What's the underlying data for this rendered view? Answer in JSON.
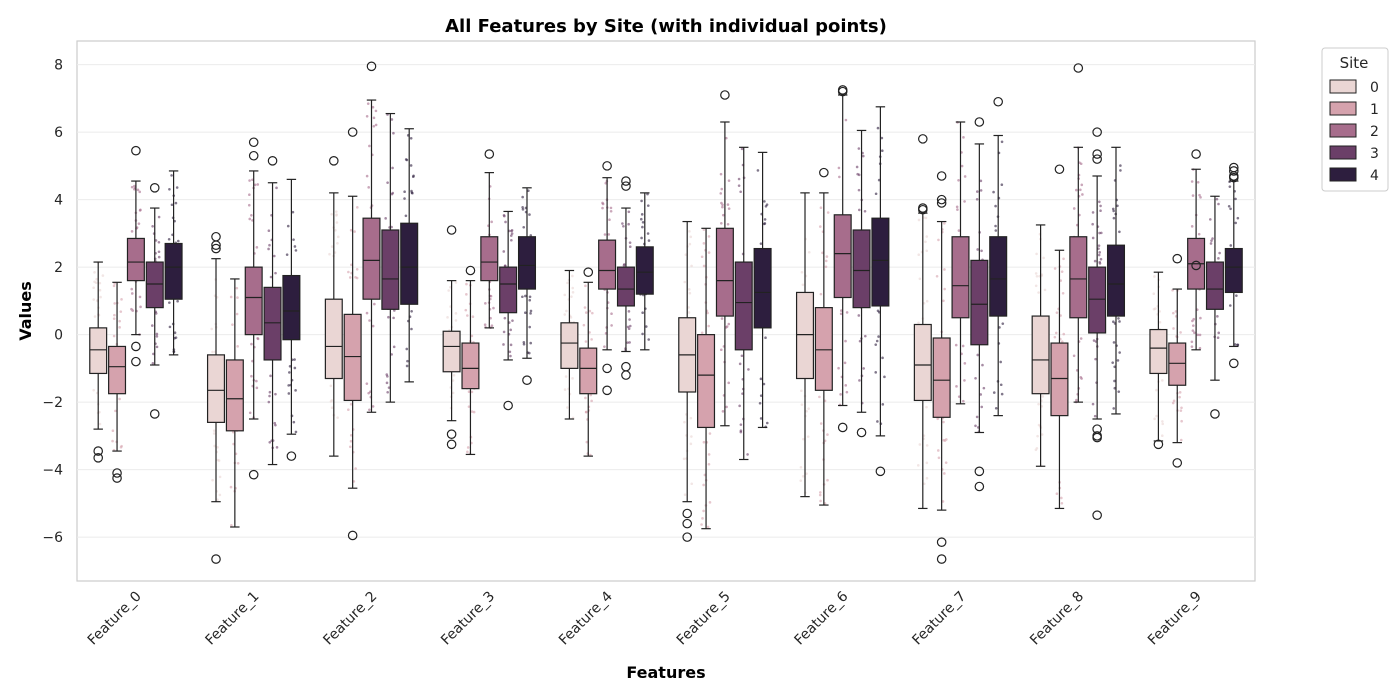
{
  "chart_data": {
    "type": "box",
    "title": "All Features by Site (with individual points)",
    "xlabel": "Features",
    "ylabel": "Values",
    "ylim": [
      -7.3,
      8.7
    ],
    "yticks": [
      -6,
      -4,
      -2,
      0,
      2,
      4,
      6,
      8
    ],
    "grid": "horizontal",
    "legend_position": "upper-right-outside",
    "categories": [
      "Feature_0",
      "Feature_1",
      "Feature_2",
      "Feature_3",
      "Feature_4",
      "Feature_5",
      "Feature_6",
      "Feature_7",
      "Feature_8",
      "Feature_9"
    ],
    "legend_title": "Site",
    "series": [
      {
        "name": "0",
        "color": "#ead6d4",
        "boxes": [
          {
            "whislo": -2.8,
            "q1": -1.15,
            "med": -0.45,
            "q3": 0.2,
            "whishi": 2.15,
            "fliers": [
              -3.45,
              -3.65
            ]
          },
          {
            "whislo": -4.95,
            "q1": -2.6,
            "med": -1.65,
            "q3": -0.6,
            "whishi": 2.25,
            "fliers": [
              2.9,
              2.65,
              2.55,
              -6.65
            ]
          },
          {
            "whislo": -3.6,
            "q1": -1.3,
            "med": -0.35,
            "q3": 1.05,
            "whishi": 4.2,
            "fliers": [
              5.15
            ]
          },
          {
            "whislo": -2.55,
            "q1": -1.1,
            "med": -0.35,
            "q3": 0.1,
            "whishi": 1.6,
            "fliers": [
              3.1,
              -2.95,
              -3.25
            ]
          },
          {
            "whislo": -2.5,
            "q1": -1.0,
            "med": -0.25,
            "q3": 0.35,
            "whishi": 1.9,
            "fliers": []
          },
          {
            "whislo": -4.95,
            "q1": -1.7,
            "med": -0.6,
            "q3": 0.5,
            "whishi": 3.35,
            "fliers": [
              -5.3,
              -5.6,
              -6.0
            ]
          },
          {
            "whislo": -4.8,
            "q1": -1.3,
            "med": 0.0,
            "q3": 1.25,
            "whishi": 4.2,
            "fliers": []
          },
          {
            "whislo": -5.15,
            "q1": -1.95,
            "med": -0.9,
            "q3": 0.3,
            "whishi": 3.6,
            "fliers": [
              5.8,
              3.75,
              3.7
            ]
          },
          {
            "whislo": -3.9,
            "q1": -1.75,
            "med": -0.75,
            "q3": 0.55,
            "whishi": 3.25,
            "fliers": []
          },
          {
            "whislo": -3.15,
            "q1": -1.15,
            "med": -0.4,
            "q3": 0.15,
            "whishi": 1.85,
            "fliers": [
              -3.25
            ]
          }
        ]
      },
      {
        "name": "1",
        "color": "#d5a2ad",
        "boxes": [
          {
            "whislo": -3.45,
            "q1": -1.75,
            "med": -0.95,
            "q3": -0.35,
            "whishi": 1.55,
            "fliers": [
              -4.1,
              -4.25
            ]
          },
          {
            "whislo": -5.7,
            "q1": -2.85,
            "med": -1.9,
            "q3": -0.75,
            "whishi": 1.65,
            "fliers": []
          },
          {
            "whislo": -4.55,
            "q1": -1.95,
            "med": -0.65,
            "q3": 0.6,
            "whishi": 4.1,
            "fliers": [
              6.0,
              -5.95
            ]
          },
          {
            "whislo": -3.55,
            "q1": -1.6,
            "med": -1.0,
            "q3": -0.25,
            "whishi": 1.6,
            "fliers": [
              1.9
            ]
          },
          {
            "whislo": -3.6,
            "q1": -1.75,
            "med": -1.0,
            "q3": -0.4,
            "whishi": 1.55,
            "fliers": [
              1.85
            ]
          },
          {
            "whislo": -5.75,
            "q1": -2.75,
            "med": -1.2,
            "q3": 0.0,
            "whishi": 3.15,
            "fliers": []
          },
          {
            "whislo": -5.05,
            "q1": -1.65,
            "med": -0.45,
            "q3": 0.8,
            "whishi": 4.2,
            "fliers": [
              4.8
            ]
          },
          {
            "whislo": -5.2,
            "q1": -2.45,
            "med": -1.35,
            "q3": -0.1,
            "whishi": 3.35,
            "fliers": [
              4.7,
              4.0,
              3.9,
              -6.15,
              -6.65
            ]
          },
          {
            "whislo": -5.15,
            "q1": -2.4,
            "med": -1.3,
            "q3": -0.25,
            "whishi": 2.5,
            "fliers": [
              4.9
            ]
          },
          {
            "whislo": -3.2,
            "q1": -1.5,
            "med": -0.85,
            "q3": -0.25,
            "whishi": 1.35,
            "fliers": [
              2.25,
              -3.8
            ]
          }
        ]
      },
      {
        "name": "2",
        "color": "#a76d8c",
        "boxes": [
          {
            "whislo": 0.0,
            "q1": 1.6,
            "med": 2.15,
            "q3": 2.85,
            "whishi": 4.55,
            "fliers": [
              5.45,
              -0.35,
              -0.8
            ]
          },
          {
            "whislo": -2.5,
            "q1": 0.0,
            "med": 1.1,
            "q3": 2.0,
            "whishi": 4.85,
            "fliers": [
              5.7,
              5.3,
              -4.15
            ]
          },
          {
            "whislo": -2.3,
            "q1": 1.05,
            "med": 2.2,
            "q3": 3.45,
            "whishi": 6.95,
            "fliers": [
              7.95
            ]
          },
          {
            "whislo": 0.2,
            "q1": 1.6,
            "med": 2.15,
            "q3": 2.9,
            "whishi": 4.8,
            "fliers": [
              5.35
            ]
          },
          {
            "whislo": -0.45,
            "q1": 1.35,
            "med": 1.9,
            "q3": 2.8,
            "whishi": 4.65,
            "fliers": [
              5.0,
              -1.0,
              -1.65
            ]
          },
          {
            "whislo": -2.7,
            "q1": 0.55,
            "med": 1.6,
            "q3": 3.15,
            "whishi": 6.3,
            "fliers": [
              7.1
            ]
          },
          {
            "whislo": -2.1,
            "q1": 1.1,
            "med": 2.4,
            "q3": 3.55,
            "whishi": 7.1,
            "fliers": [
              7.25,
              7.2,
              -2.75
            ]
          },
          {
            "whislo": -2.05,
            "q1": 0.5,
            "med": 1.45,
            "q3": 2.9,
            "whishi": 6.3,
            "fliers": []
          },
          {
            "whislo": -2.0,
            "q1": 0.5,
            "med": 1.65,
            "q3": 2.9,
            "whishi": 5.55,
            "fliers": [
              7.9
            ]
          },
          {
            "whislo": -0.45,
            "q1": 1.35,
            "med": 2.1,
            "q3": 2.85,
            "whishi": 4.9,
            "fliers": [
              5.35,
              2.05
            ]
          }
        ]
      },
      {
        "name": "3",
        "color": "#6b3f68",
        "boxes": [
          {
            "whislo": -0.9,
            "q1": 0.8,
            "med": 1.5,
            "q3": 2.15,
            "whishi": 3.75,
            "fliers": [
              4.35,
              -2.35
            ]
          },
          {
            "whislo": -3.85,
            "q1": -0.75,
            "med": 0.35,
            "q3": 1.4,
            "whishi": 4.5,
            "fliers": [
              5.15
            ]
          },
          {
            "whislo": -2.0,
            "q1": 0.75,
            "med": 1.65,
            "q3": 3.1,
            "whishi": 6.55,
            "fliers": []
          },
          {
            "whislo": -0.75,
            "q1": 0.65,
            "med": 1.5,
            "q3": 2.0,
            "whishi": 3.65,
            "fliers": [
              -2.1
            ]
          },
          {
            "whislo": -0.5,
            "q1": 0.85,
            "med": 1.35,
            "q3": 2.0,
            "whishi": 3.75,
            "fliers": [
              4.55,
              4.4,
              -0.95,
              -1.2
            ]
          },
          {
            "whislo": -3.7,
            "q1": -0.45,
            "med": 0.95,
            "q3": 2.15,
            "whishi": 5.55,
            "fliers": []
          },
          {
            "whislo": -2.3,
            "q1": 0.8,
            "med": 1.9,
            "q3": 3.1,
            "whishi": 6.05,
            "fliers": [
              -2.9
            ]
          },
          {
            "whislo": -2.9,
            "q1": -0.3,
            "med": 0.9,
            "q3": 2.2,
            "whishi": 5.65,
            "fliers": [
              6.3,
              -4.05,
              -4.5
            ]
          },
          {
            "whislo": -2.5,
            "q1": 0.05,
            "med": 1.05,
            "q3": 2.0,
            "whishi": 4.7,
            "fliers": [
              6.0,
              5.35,
              5.2,
              -2.8,
              -3.0,
              -3.05,
              -5.35
            ]
          },
          {
            "whislo": -1.35,
            "q1": 0.75,
            "med": 1.35,
            "q3": 2.15,
            "whishi": 4.1,
            "fliers": [
              -2.35
            ]
          }
        ]
      },
      {
        "name": "4",
        "color": "#2d1e3e",
        "boxes": [
          {
            "whislo": -0.6,
            "q1": 1.05,
            "med": 2.0,
            "q3": 2.7,
            "whishi": 4.85,
            "fliers": []
          },
          {
            "whislo": -2.95,
            "q1": -0.15,
            "med": 0.7,
            "q3": 1.75,
            "whishi": 4.6,
            "fliers": [
              -3.6
            ]
          },
          {
            "whislo": -1.4,
            "q1": 0.9,
            "med": 2.0,
            "q3": 3.3,
            "whishi": 6.1,
            "fliers": []
          },
          {
            "whislo": -0.7,
            "q1": 1.35,
            "med": 2.05,
            "q3": 2.9,
            "whishi": 4.35,
            "fliers": [
              -1.35
            ]
          },
          {
            "whislo": -0.45,
            "q1": 1.2,
            "med": 1.85,
            "q3": 2.6,
            "whishi": 4.2,
            "fliers": []
          },
          {
            "whislo": -2.75,
            "q1": 0.2,
            "med": 1.25,
            "q3": 2.55,
            "whishi": 5.4,
            "fliers": []
          },
          {
            "whislo": -3.0,
            "q1": 0.85,
            "med": 2.2,
            "q3": 3.45,
            "whishi": 6.75,
            "fliers": [
              -4.05
            ]
          },
          {
            "whislo": -2.4,
            "q1": 0.55,
            "med": 1.65,
            "q3": 2.9,
            "whishi": 5.9,
            "fliers": [
              6.9
            ]
          },
          {
            "whislo": -2.35,
            "q1": 0.55,
            "med": 1.5,
            "q3": 2.65,
            "whishi": 5.55,
            "fliers": []
          },
          {
            "whislo": -0.35,
            "q1": 1.25,
            "med": 2.0,
            "q3": 2.55,
            "whishi": 4.55,
            "fliers": [
              4.95,
              4.85,
              4.7,
              4.65,
              -0.85
            ]
          }
        ]
      }
    ]
  }
}
